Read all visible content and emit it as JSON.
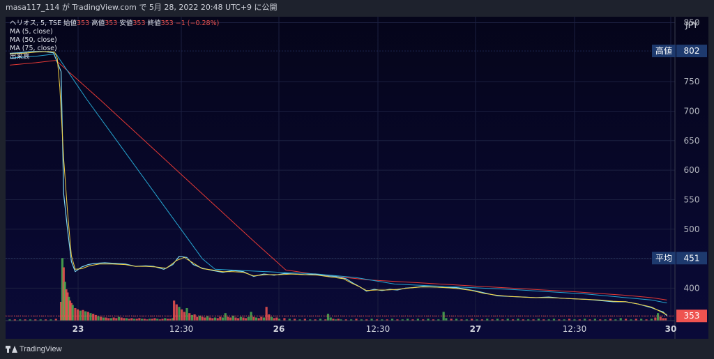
{
  "header": {
    "publish_text": "masa117_114 が TradingView.com で 5月 28, 2022 20:48 UTC+9 に公開"
  },
  "legend": {
    "symbol": "ヘリオス, 5, TSE",
    "open_label": "始値",
    "open_value": "353",
    "high_label": "高値",
    "high_value": "353",
    "low_label": "安値",
    "low_value": "353",
    "close_label": "終値",
    "close_value": "353",
    "change": "−1 (−0.28%)",
    "indicators": [
      "MA (5, close)",
      "MA (50, close)",
      "MA (75, close)",
      "出来高"
    ]
  },
  "footer": {
    "brand": "TradingView"
  },
  "colors": {
    "up": "#4caf50",
    "down": "#ef5350",
    "ma5": "#f4d03f",
    "ma50": "#26a6d1",
    "ma75": "#e53935",
    "label_bg": "#1e3a6e"
  },
  "chart_data": {
    "type": "line",
    "currency": "JPY",
    "y_ticks": [
      850,
      750,
      700,
      650,
      600,
      550,
      500,
      450,
      400
    ],
    "ylim": [
      345,
      860
    ],
    "x_ticks": [
      "23",
      "12:30",
      "26",
      "12:30",
      "27",
      "12:30",
      "30"
    ],
    "price_labels": [
      {
        "label": "高値",
        "value": 802,
        "style": "dark"
      },
      {
        "label": "平均",
        "value": 451,
        "style": "dark"
      },
      {
        "label": "",
        "value": 353,
        "style": "red"
      }
    ],
    "price": [
      [
        0,
        798
      ],
      [
        8,
        799
      ],
      [
        17,
        801
      ],
      [
        26,
        801
      ],
      [
        34,
        799
      ],
      [
        40,
        767
      ],
      [
        42,
        560
      ],
      [
        45,
        500
      ],
      [
        48,
        445
      ],
      [
        51,
        428
      ],
      [
        56,
        436
      ],
      [
        61,
        440
      ],
      [
        66,
        442
      ],
      [
        74,
        443
      ],
      [
        82,
        442
      ],
      [
        90,
        441
      ],
      [
        98,
        437
      ],
      [
        106,
        438
      ],
      [
        112,
        437
      ],
      [
        120,
        432
      ],
      [
        127,
        440
      ],
      [
        132,
        454
      ],
      [
        138,
        452
      ],
      [
        143,
        440
      ],
      [
        150,
        434
      ],
      [
        158,
        430
      ],
      [
        166,
        427
      ],
      [
        174,
        430
      ],
      [
        182,
        428
      ],
      [
        190,
        420
      ],
      [
        198,
        424
      ],
      [
        206,
        422
      ],
      [
        214,
        425
      ],
      [
        222,
        424
      ],
      [
        230,
        423
      ],
      [
        238,
        424
      ],
      [
        246,
        421
      ],
      [
        254,
        420
      ],
      [
        262,
        416
      ],
      [
        268,
        408
      ],
      [
        273,
        402
      ],
      [
        278,
        395
      ],
      [
        284,
        398
      ],
      [
        290,
        396
      ],
      [
        296,
        398
      ],
      [
        302,
        397
      ],
      [
        308,
        400
      ],
      [
        314,
        401
      ],
      [
        322,
        403
      ],
      [
        330,
        402
      ],
      [
        340,
        401
      ],
      [
        348,
        401
      ],
      [
        356,
        398
      ],
      [
        364,
        395
      ],
      [
        372,
        391
      ],
      [
        380,
        387
      ],
      [
        390,
        386
      ],
      [
        400,
        385
      ],
      [
        410,
        384
      ],
      [
        420,
        385
      ],
      [
        430,
        383
      ],
      [
        440,
        382
      ],
      [
        450,
        381
      ],
      [
        460,
        379
      ],
      [
        470,
        377
      ],
      [
        480,
        377
      ],
      [
        490,
        373
      ],
      [
        500,
        367
      ],
      [
        506,
        362
      ],
      [
        509,
        360
      ],
      [
        512,
        353
      ]
    ],
    "ma5": [
      [
        0,
        797
      ],
      [
        10,
        798
      ],
      [
        20,
        800
      ],
      [
        30,
        801
      ],
      [
        35,
        800
      ],
      [
        37,
        790
      ],
      [
        39,
        740
      ],
      [
        42,
        620
      ],
      [
        45,
        530
      ],
      [
        48,
        455
      ],
      [
        51,
        432
      ],
      [
        56,
        433
      ],
      [
        62,
        438
      ],
      [
        70,
        441
      ],
      [
        80,
        441
      ],
      [
        90,
        440
      ],
      [
        98,
        437
      ],
      [
        106,
        437
      ],
      [
        114,
        436
      ],
      [
        122,
        434
      ],
      [
        130,
        447
      ],
      [
        136,
        452
      ],
      [
        142,
        444
      ],
      [
        150,
        433
      ],
      [
        158,
        431
      ],
      [
        166,
        428
      ],
      [
        174,
        428
      ],
      [
        182,
        427
      ],
      [
        190,
        421
      ],
      [
        200,
        423
      ],
      [
        210,
        423
      ],
      [
        220,
        424
      ],
      [
        230,
        423
      ],
      [
        240,
        422
      ],
      [
        250,
        419
      ],
      [
        260,
        416
      ],
      [
        266,
        409
      ],
      [
        272,
        403
      ],
      [
        278,
        396
      ],
      [
        286,
        397
      ],
      [
        294,
        397
      ],
      [
        302,
        398
      ],
      [
        310,
        400
      ],
      [
        320,
        402
      ],
      [
        330,
        402
      ],
      [
        340,
        401
      ],
      [
        350,
        399
      ],
      [
        360,
        396
      ],
      [
        370,
        391
      ],
      [
        380,
        388
      ],
      [
        390,
        386
      ],
      [
        400,
        385
      ],
      [
        410,
        384
      ],
      [
        420,
        384
      ],
      [
        430,
        383
      ],
      [
        440,
        382
      ],
      [
        450,
        381
      ],
      [
        460,
        380
      ],
      [
        470,
        378
      ],
      [
        480,
        377
      ],
      [
        490,
        373
      ],
      [
        500,
        368
      ],
      [
        512,
        355
      ]
    ],
    "ma50": [
      [
        0,
        790
      ],
      [
        20,
        793
      ],
      [
        36,
        797
      ],
      [
        60,
        720
      ],
      [
        90,
        630
      ],
      [
        120,
        540
      ],
      [
        150,
        450
      ],
      [
        160,
        432
      ],
      [
        180,
        430
      ],
      [
        210,
        427
      ],
      [
        240,
        424
      ],
      [
        270,
        418
      ],
      [
        300,
        407
      ],
      [
        330,
        404
      ],
      [
        360,
        401
      ],
      [
        390,
        398
      ],
      [
        420,
        394
      ],
      [
        450,
        390
      ],
      [
        480,
        384
      ],
      [
        500,
        380
      ],
      [
        512,
        375
      ]
    ],
    "ma75": [
      [
        0,
        778
      ],
      [
        20,
        782
      ],
      [
        36,
        786
      ],
      [
        70,
        720
      ],
      [
        110,
        640
      ],
      [
        150,
        560
      ],
      [
        190,
        480
      ],
      [
        215,
        431
      ],
      [
        240,
        423
      ],
      [
        280,
        414
      ],
      [
        320,
        409
      ],
      [
        360,
        404
      ],
      [
        400,
        399
      ],
      [
        440,
        394
      ],
      [
        480,
        388
      ],
      [
        500,
        384
      ],
      [
        512,
        380
      ]
    ],
    "volume_max": 100,
    "volume": [
      [
        0,
        2,
        1
      ],
      [
        4,
        2,
        0
      ],
      [
        8,
        2,
        1
      ],
      [
        12,
        2,
        0
      ],
      [
        16,
        2,
        1
      ],
      [
        20,
        2,
        0
      ],
      [
        24,
        2,
        1
      ],
      [
        28,
        2,
        0
      ],
      [
        32,
        2,
        1
      ],
      [
        36,
        3,
        0
      ],
      [
        40,
        30,
        0
      ],
      [
        41,
        100,
        1
      ],
      [
        42,
        85,
        0
      ],
      [
        43,
        62,
        1
      ],
      [
        44,
        50,
        0
      ],
      [
        45,
        45,
        0
      ],
      [
        46,
        38,
        1
      ],
      [
        47,
        32,
        0
      ],
      [
        48,
        28,
        0
      ],
      [
        49,
        25,
        1
      ],
      [
        51,
        20,
        0
      ],
      [
        53,
        18,
        0
      ],
      [
        55,
        16,
        1
      ],
      [
        57,
        17,
        0
      ],
      [
        59,
        15,
        1
      ],
      [
        61,
        14,
        0
      ],
      [
        63,
        12,
        1
      ],
      [
        65,
        11,
        0
      ],
      [
        67,
        9,
        0
      ],
      [
        69,
        7,
        1
      ],
      [
        71,
        6,
        0
      ],
      [
        73,
        5,
        1
      ],
      [
        75,
        5,
        0
      ],
      [
        77,
        4,
        0
      ],
      [
        79,
        4,
        1
      ],
      [
        81,
        5,
        0
      ],
      [
        83,
        4,
        0
      ],
      [
        85,
        6,
        1
      ],
      [
        87,
        5,
        0
      ],
      [
        89,
        4,
        0
      ],
      [
        91,
        4,
        1
      ],
      [
        93,
        3,
        0
      ],
      [
        95,
        4,
        0
      ],
      [
        97,
        3,
        1
      ],
      [
        99,
        3,
        0
      ],
      [
        101,
        4,
        0
      ],
      [
        103,
        3,
        1
      ],
      [
        105,
        3,
        0
      ],
      [
        107,
        2,
        0
      ],
      [
        109,
        3,
        1
      ],
      [
        111,
        3,
        0
      ],
      [
        113,
        4,
        0
      ],
      [
        115,
        3,
        1
      ],
      [
        117,
        2,
        0
      ],
      [
        119,
        3,
        0
      ],
      [
        121,
        4,
        1
      ],
      [
        123,
        3,
        0
      ],
      [
        125,
        3,
        0
      ],
      [
        127,
        4,
        1
      ],
      [
        128,
        32,
        0
      ],
      [
        130,
        26,
        0
      ],
      [
        132,
        22,
        1
      ],
      [
        134,
        18,
        0
      ],
      [
        136,
        14,
        0
      ],
      [
        138,
        20,
        1
      ],
      [
        140,
        12,
        0
      ],
      [
        142,
        9,
        1
      ],
      [
        144,
        10,
        0
      ],
      [
        146,
        6,
        0
      ],
      [
        148,
        8,
        1
      ],
      [
        150,
        6,
        0
      ],
      [
        152,
        5,
        0
      ],
      [
        154,
        7,
        1
      ],
      [
        156,
        5,
        0
      ],
      [
        158,
        4,
        0
      ],
      [
        160,
        5,
        1
      ],
      [
        162,
        4,
        0
      ],
      [
        164,
        6,
        0
      ],
      [
        166,
        5,
        1
      ],
      [
        168,
        12,
        1
      ],
      [
        170,
        6,
        0
      ],
      [
        172,
        5,
        0
      ],
      [
        174,
        8,
        1
      ],
      [
        176,
        5,
        0
      ],
      [
        178,
        4,
        0
      ],
      [
        180,
        6,
        1
      ],
      [
        182,
        5,
        0
      ],
      [
        184,
        4,
        0
      ],
      [
        186,
        6,
        1
      ],
      [
        188,
        14,
        1
      ],
      [
        190,
        6,
        0
      ],
      [
        192,
        5,
        1
      ],
      [
        194,
        4,
        0
      ],
      [
        196,
        6,
        0
      ],
      [
        198,
        5,
        1
      ],
      [
        200,
        22,
        0
      ],
      [
        202,
        10,
        0
      ],
      [
        204,
        6,
        1
      ],
      [
        206,
        4,
        0
      ],
      [
        208,
        5,
        0
      ],
      [
        210,
        3,
        1
      ],
      [
        214,
        4,
        0
      ],
      [
        218,
        3,
        1
      ],
      [
        222,
        3,
        0
      ],
      [
        226,
        2,
        1
      ],
      [
        230,
        3,
        0
      ],
      [
        234,
        2,
        1
      ],
      [
        238,
        2,
        0
      ],
      [
        242,
        3,
        1
      ],
      [
        246,
        2,
        0
      ],
      [
        248,
        11,
        1
      ],
      [
        250,
        5,
        1
      ],
      [
        252,
        3,
        0
      ],
      [
        254,
        2,
        1
      ],
      [
        256,
        3,
        0
      ],
      [
        258,
        2,
        1
      ],
      [
        262,
        2,
        0
      ],
      [
        266,
        2,
        1
      ],
      [
        270,
        3,
        0
      ],
      [
        274,
        2,
        1
      ],
      [
        278,
        2,
        0
      ],
      [
        282,
        3,
        1
      ],
      [
        286,
        2,
        0
      ],
      [
        290,
        2,
        1
      ],
      [
        294,
        2,
        0
      ],
      [
        298,
        3,
        1
      ],
      [
        302,
        2,
        0
      ],
      [
        306,
        2,
        1
      ],
      [
        310,
        3,
        1
      ],
      [
        314,
        2,
        0
      ],
      [
        318,
        3,
        1
      ],
      [
        322,
        2,
        0
      ],
      [
        326,
        3,
        1
      ],
      [
        330,
        2,
        0
      ],
      [
        334,
        2,
        1
      ],
      [
        338,
        14,
        1
      ],
      [
        340,
        4,
        1
      ],
      [
        344,
        3,
        0
      ],
      [
        348,
        3,
        1
      ],
      [
        352,
        2,
        0
      ],
      [
        356,
        2,
        1
      ],
      [
        360,
        3,
        0
      ],
      [
        364,
        2,
        1
      ],
      [
        368,
        2,
        0
      ],
      [
        372,
        3,
        1
      ],
      [
        376,
        2,
        0
      ],
      [
        380,
        3,
        1
      ],
      [
        384,
        2,
        0
      ],
      [
        388,
        3,
        1
      ],
      [
        392,
        2,
        0
      ],
      [
        396,
        3,
        1
      ],
      [
        400,
        2,
        0
      ],
      [
        404,
        2,
        1
      ],
      [
        408,
        2,
        0
      ],
      [
        412,
        3,
        1
      ],
      [
        416,
        2,
        0
      ],
      [
        420,
        2,
        1
      ],
      [
        424,
        3,
        1
      ],
      [
        428,
        2,
        0
      ],
      [
        432,
        2,
        1
      ],
      [
        436,
        3,
        0
      ],
      [
        440,
        2,
        1
      ],
      [
        444,
        2,
        0
      ],
      [
        448,
        3,
        1
      ],
      [
        452,
        2,
        0
      ],
      [
        456,
        3,
        1
      ],
      [
        460,
        2,
        0
      ],
      [
        464,
        2,
        1
      ],
      [
        468,
        3,
        0
      ],
      [
        472,
        2,
        1
      ],
      [
        476,
        4,
        1
      ],
      [
        480,
        3,
        0
      ],
      [
        484,
        2,
        1
      ],
      [
        488,
        3,
        0
      ],
      [
        492,
        3,
        1
      ],
      [
        496,
        2,
        0
      ],
      [
        500,
        3,
        1
      ],
      [
        503,
        5,
        0
      ],
      [
        505,
        12,
        1
      ],
      [
        507,
        6,
        0
      ],
      [
        509,
        4,
        0
      ],
      [
        511,
        4,
        0
      ]
    ]
  }
}
